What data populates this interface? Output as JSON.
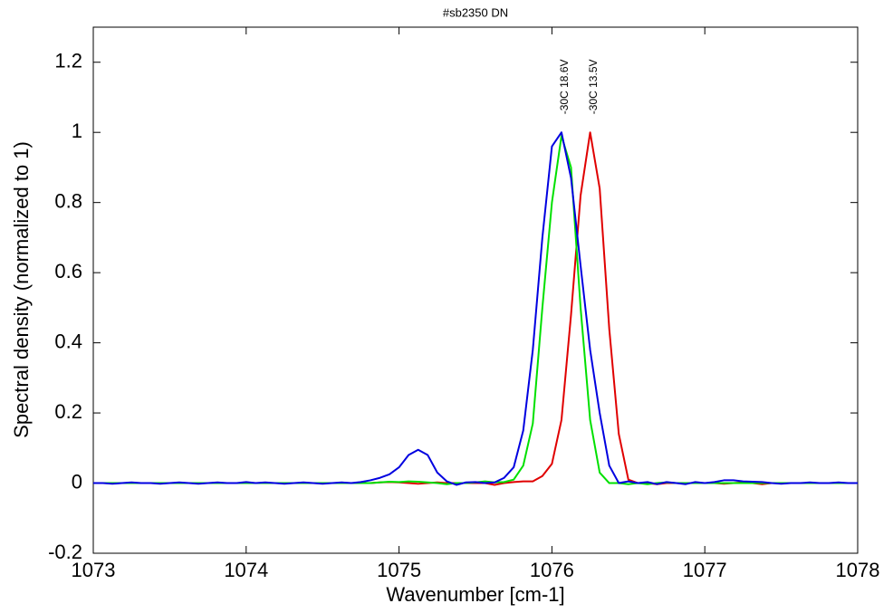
{
  "chart_data": {
    "type": "line",
    "title": "#sb2350 DN",
    "xlabel": "Wavenumber [cm-1]",
    "ylabel": "Spectral density (normalized to 1)",
    "annotations": [
      "-30C 18.6V",
      "-30C 13.5V"
    ],
    "x": [
      1073,
      1073.0625,
      1073.125,
      1073.1875,
      1073.25,
      1073.3125,
      1073.375,
      1073.4375,
      1073.5,
      1073.5625,
      1073.625,
      1073.6875,
      1073.75,
      1073.8125,
      1073.875,
      1073.9375,
      1074,
      1074.0625,
      1074.125,
      1074.1875,
      1074.25,
      1074.3125,
      1074.375,
      1074.4375,
      1074.5,
      1074.5625,
      1074.625,
      1074.6875,
      1074.75,
      1074.8125,
      1074.875,
      1074.9375,
      1075,
      1075.0625,
      1075.125,
      1075.1875,
      1075.25,
      1075.3125,
      1075.375,
      1075.4375,
      1075.5,
      1075.5625,
      1075.625,
      1075.6875,
      1075.75,
      1075.8125,
      1075.875,
      1075.9375,
      1076,
      1076.0625,
      1076.125,
      1076.1875,
      1076.25,
      1076.3125,
      1076.375,
      1076.4375,
      1076.5,
      1076.5625,
      1076.625,
      1076.6875,
      1076.75,
      1076.8125,
      1076.875,
      1076.9375,
      1077,
      1077.0625,
      1077.125,
      1077.1875,
      1077.25,
      1077.3125,
      1077.375,
      1077.4375,
      1077.5,
      1077.5625,
      1077.625,
      1077.6875,
      1077.75,
      1077.8125,
      1077.875,
      1077.9375,
      1078
    ],
    "series": [
      {
        "color": "#e00000",
        "values": [
          0,
          0,
          0,
          0,
          0,
          0,
          0,
          0,
          0,
          0,
          0,
          0,
          0,
          0,
          0,
          0,
          0,
          0,
          0,
          0,
          0,
          0,
          0,
          0,
          0,
          0,
          0,
          0,
          0,
          0,
          0.002,
          0.003,
          0.002,
          0,
          -0.002,
          0,
          0.002,
          0,
          0,
          0,
          0,
          0,
          -0.005,
          0,
          0.003,
          0.005,
          0.005,
          0.02,
          0.055,
          0.18,
          0.48,
          0.82,
          1.0,
          0.84,
          0.44,
          0.14,
          0.01,
          0,
          0,
          -0.003,
          0,
          0,
          0,
          0,
          0,
          0,
          -0.002,
          0,
          0.002,
          0,
          -0.003,
          0,
          0,
          0,
          0,
          0,
          0,
          0,
          0,
          0,
          0
        ]
      },
      {
        "color": "#00e000",
        "values": [
          0,
          0,
          0,
          0,
          0,
          0,
          0,
          0,
          0,
          0,
          0,
          0,
          0,
          0,
          0,
          0,
          0,
          0,
          0,
          0,
          0,
          0,
          0,
          0,
          0,
          0,
          0,
          0,
          0,
          0,
          0.002,
          0.004,
          0.003,
          0.005,
          0.004,
          0.002,
          0,
          -0.003,
          0,
          0,
          0.002,
          0.005,
          0.002,
          0.003,
          0.01,
          0.05,
          0.17,
          0.5,
          0.8,
          0.99,
          0.9,
          0.5,
          0.18,
          0.03,
          0,
          0,
          -0.003,
          0,
          -0.003,
          0,
          0.002,
          0,
          0,
          0,
          0,
          0,
          0,
          0,
          0,
          0,
          0,
          0,
          0,
          0,
          0,
          0,
          0,
          0,
          0,
          0,
          0
        ]
      },
      {
        "color": "#0000e0",
        "values": [
          0,
          0,
          -0.002,
          0,
          0.002,
          0,
          0,
          -0.002,
          0,
          0.002,
          0,
          -0.002,
          0,
          0.002,
          0,
          0,
          0.003,
          0,
          0.002,
          0,
          -0.002,
          0,
          0.002,
          0,
          -0.002,
          0,
          0.002,
          0,
          0.003,
          0.008,
          0.015,
          0.025,
          0.045,
          0.08,
          0.095,
          0.08,
          0.03,
          0.005,
          -0.005,
          0.002,
          0.003,
          0,
          0.002,
          0.015,
          0.045,
          0.15,
          0.38,
          0.7,
          0.96,
          1.0,
          0.87,
          0.62,
          0.38,
          0.2,
          0.05,
          0,
          0.005,
          0,
          0.003,
          -0.003,
          0.003,
          0,
          -0.003,
          0.003,
          0,
          0.003,
          0.008,
          0.008,
          0.005,
          0.004,
          0.003,
          0,
          -0.002,
          0,
          0,
          0.002,
          0,
          0,
          0.002,
          0,
          0
        ]
      }
    ],
    "xlim": [
      1073,
      1078
    ],
    "xticks": [
      1073,
      1074,
      1075,
      1076,
      1077,
      1078
    ],
    "ylim": [
      -0.2,
      1.3
    ],
    "yticks": [
      -0.2,
      0,
      0.2,
      0.4,
      0.6,
      0.8,
      1,
      1.2
    ],
    "grid": false
  }
}
